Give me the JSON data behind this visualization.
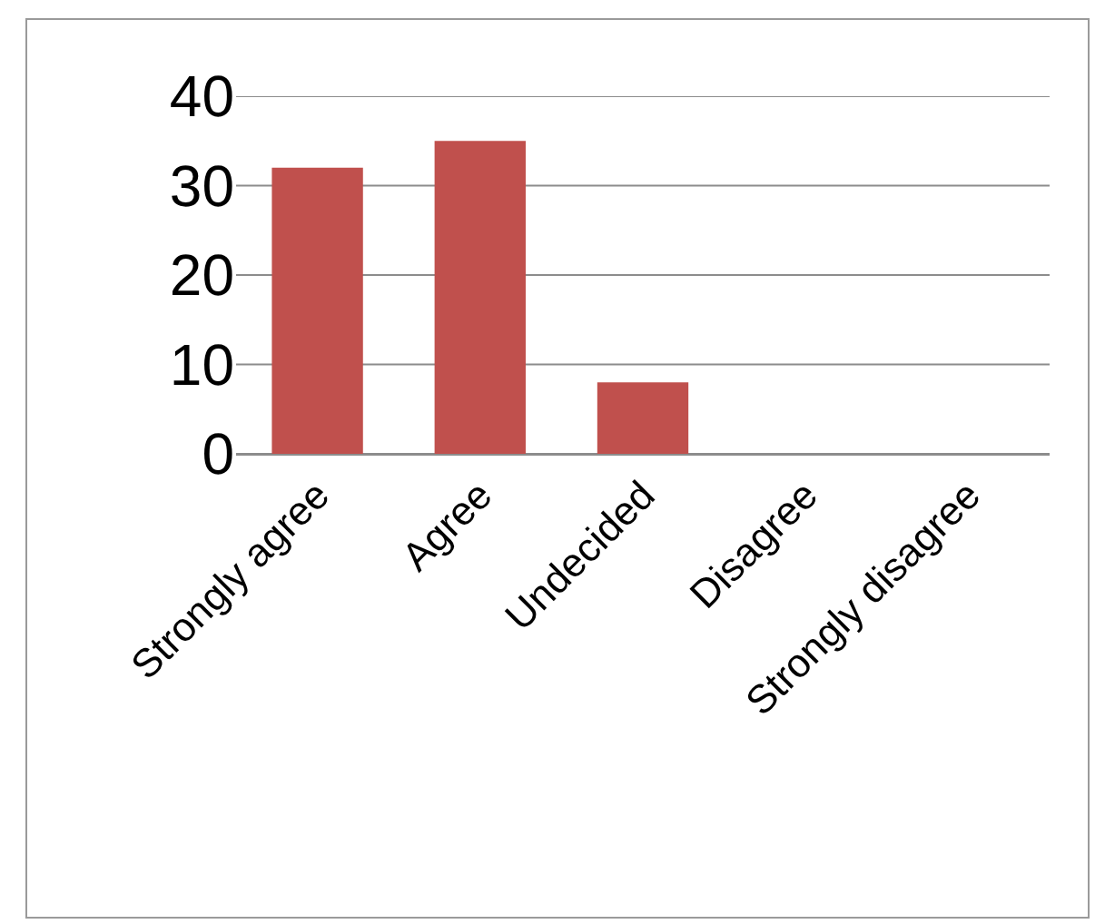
{
  "chart_data": {
    "type": "bar",
    "categories": [
      "Strongly agree",
      "Agree",
      "Undecided",
      "Disagree",
      "Strongly disagree"
    ],
    "values": [
      32,
      35,
      8,
      0,
      0
    ],
    "color": "#c0504d",
    "ylim": [
      0,
      40
    ],
    "yticks": [
      0,
      10,
      20,
      30,
      40
    ],
    "grid": "y"
  }
}
